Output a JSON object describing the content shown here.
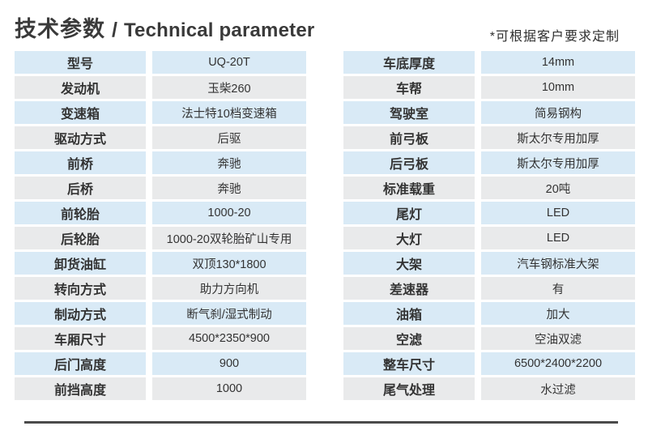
{
  "header": {
    "title_zh": "技术参数",
    "title_sep": "/",
    "title_en": "Technical parameter",
    "note": "*可根据客户要求定制"
  },
  "colors": {
    "row_blue": "#d9eaf6",
    "row_gray": "#e9eaeb",
    "cell_text": "#333333",
    "title_text": "#3a3a3a",
    "bottom_rule": "#4a4a4a"
  },
  "tables": {
    "left": {
      "rows": [
        {
          "label": "型号",
          "value": "UQ-20T"
        },
        {
          "label": "发动机",
          "value": "玉柴260"
        },
        {
          "label": "变速箱",
          "value": "法士特10档变速箱"
        },
        {
          "label": "驱动方式",
          "value": "后驱"
        },
        {
          "label": "前桥",
          "value": "奔驰"
        },
        {
          "label": "后桥",
          "value": "奔驰"
        },
        {
          "label": "前轮胎",
          "value": "1000-20"
        },
        {
          "label": "后轮胎",
          "value": "1000-20双轮胎矿山专用"
        },
        {
          "label": "卸货油缸",
          "value": "双顶130*1800"
        },
        {
          "label": "转向方式",
          "value": "助力方向机"
        },
        {
          "label": "制动方式",
          "value": "断气刹/湿式制动"
        },
        {
          "label": "车厢尺寸",
          "value": "4500*2350*900"
        },
        {
          "label": "后门高度",
          "value": "900"
        },
        {
          "label": "前挡高度",
          "value": "1000"
        }
      ]
    },
    "right": {
      "rows": [
        {
          "label": "车底厚度",
          "value": "14mm"
        },
        {
          "label": "车帮",
          "value": "10mm"
        },
        {
          "label": "驾驶室",
          "value": "简易钢构"
        },
        {
          "label": "前弓板",
          "value": "斯太尔专用加厚"
        },
        {
          "label": "后弓板",
          "value": "斯太尔专用加厚"
        },
        {
          "label": "标准载重",
          "value": "20吨"
        },
        {
          "label": "尾灯",
          "value": "LED"
        },
        {
          "label": "大灯",
          "value": "LED"
        },
        {
          "label": "大架",
          "value": "汽车钢标准大架"
        },
        {
          "label": "差速器",
          "value": "有"
        },
        {
          "label": "油箱",
          "value": "加大"
        },
        {
          "label": "空滤",
          "value": "空油双滤"
        },
        {
          "label": "整车尺寸",
          "value": "6500*2400*2200"
        },
        {
          "label": "尾气处理",
          "value": "水过滤"
        }
      ]
    }
  }
}
